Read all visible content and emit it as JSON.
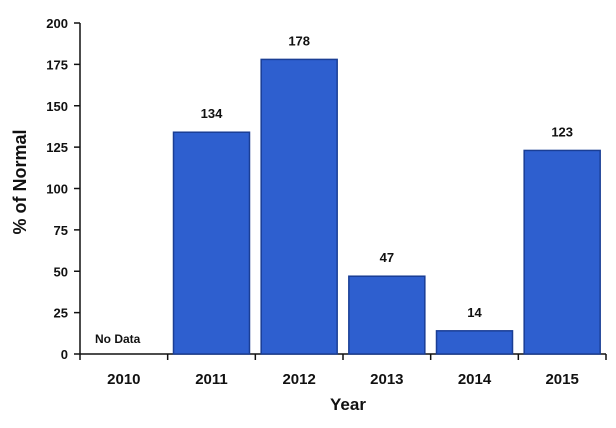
{
  "chart_data": {
    "type": "bar",
    "title": "",
    "xlabel": "Year",
    "ylabel": "% of Normal",
    "categories": [
      "2010",
      "2011",
      "2012",
      "2013",
      "2014",
      "2015"
    ],
    "values": [
      null,
      134,
      178,
      47,
      14,
      123
    ],
    "data_labels": [
      "No Data",
      "134",
      "178",
      "47",
      "14",
      "123"
    ],
    "ylim": [
      0,
      200
    ],
    "yticks": [
      "0",
      "25",
      "50",
      "75",
      "100",
      "125",
      "150",
      "175",
      "200"
    ],
    "grid": false,
    "legend": "none",
    "colors": {
      "bar": "#2e5fcf",
      "bar_edge": "#1a3e95",
      "axis": "#111111"
    }
  }
}
